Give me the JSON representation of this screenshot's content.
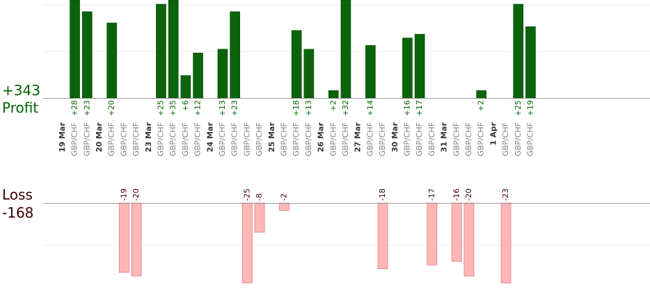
{
  "summary": {
    "profit_total": "+343",
    "profit_label": "Profit",
    "loss_label": "Loss",
    "loss_total": "-168"
  },
  "colors": {
    "profit_bar": "#0b640b",
    "profit_bar_edge": "#004400",
    "profit_text": "#006400",
    "loss_bar": "#ffb6b6",
    "loss_bar_edge": "#e07c7c",
    "loss_text": "#3a0000",
    "trade_label": "#808080",
    "date_label": "#333333",
    "gridline": "#ececec",
    "axis": "#999999"
  },
  "chart_data": {
    "type": "bar",
    "grid": true,
    "profit_ylim": [
      0,
      37
    ],
    "loss_ylim": [
      -21.5,
      0
    ],
    "days": [
      {
        "date": "19 Mar",
        "trades": [
          {
            "pair": "GBP/CHF",
            "value": 28
          },
          {
            "pair": "GBP/CHF",
            "value": 23
          }
        ]
      },
      {
        "date": "20 Mar",
        "trades": [
          {
            "pair": "GBP/CHF",
            "value": 20
          },
          {
            "pair": "GBP/CHF",
            "value": -19
          },
          {
            "pair": "GBP/CHF",
            "value": -20
          }
        ]
      },
      {
        "date": "23 Mar",
        "trades": [
          {
            "pair": "GBP/CHF",
            "value": 25
          },
          {
            "pair": "GBP/CHF",
            "value": 35
          },
          {
            "pair": "GBP/CHF",
            "value": 6
          },
          {
            "pair": "GBP/CHF",
            "value": 12
          }
        ]
      },
      {
        "date": "24 Mar",
        "trades": [
          {
            "pair": "GBP/CHF",
            "value": 13
          },
          {
            "pair": "GBP/CHF",
            "value": 23
          },
          {
            "pair": "GBP/CHF",
            "value": -25
          },
          {
            "pair": "GBP/CHF",
            "value": -8
          }
        ]
      },
      {
        "date": "25 Mar",
        "trades": [
          {
            "pair": "GBP/CHF",
            "value": -2
          },
          {
            "pair": "GBP/CHF",
            "value": 18
          },
          {
            "pair": "GBP/CHF",
            "value": 13
          }
        ]
      },
      {
        "date": "26 Mar",
        "trades": [
          {
            "pair": "GBP/CHF",
            "value": 2
          },
          {
            "pair": "GBP/CHF",
            "value": 32
          }
        ]
      },
      {
        "date": "27 Mar",
        "trades": [
          {
            "pair": "GBP/CHF",
            "value": 14
          },
          {
            "pair": "GBP/CHF",
            "value": -18
          }
        ]
      },
      {
        "date": "30 Mar",
        "trades": [
          {
            "pair": "GBP/CHF",
            "value": 16
          },
          {
            "pair": "GBP/CHF",
            "value": 17
          },
          {
            "pair": "GBP/CHF",
            "value": -17
          }
        ]
      },
      {
        "date": "31 Mar",
        "trades": [
          {
            "pair": "GBP/CHF",
            "value": -16
          },
          {
            "pair": "GBP/CHF",
            "value": -20
          },
          {
            "pair": "GBP/CHF",
            "value": 2
          }
        ]
      },
      {
        "date": "1 Apr",
        "trades": [
          {
            "pair": "GBP/CHF",
            "value": -23
          },
          {
            "pair": "GBP/CHF",
            "value": 25
          },
          {
            "pair": "GBP/CHF",
            "value": 19
          }
        ]
      }
    ]
  }
}
